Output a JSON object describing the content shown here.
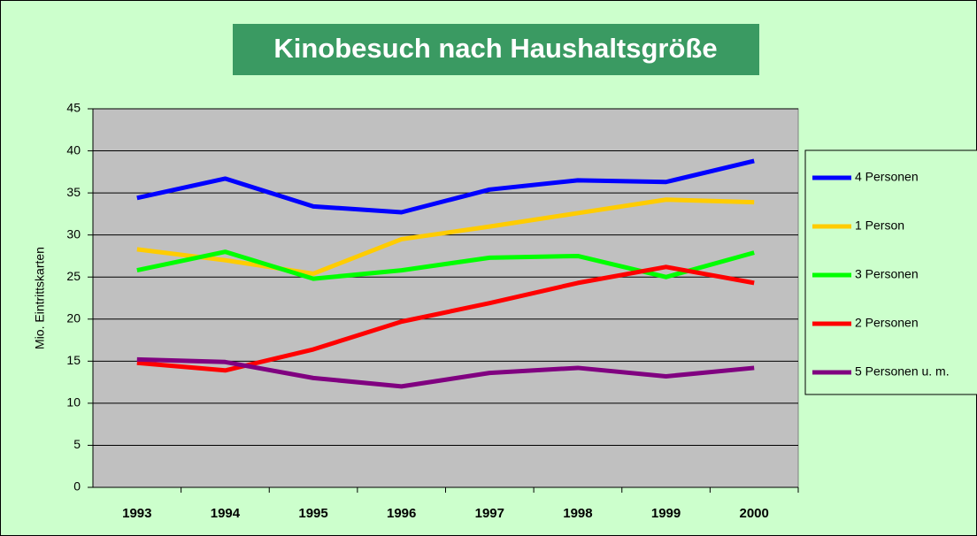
{
  "chart_data": {
    "type": "line",
    "title": "Kinobesuch nach Haushaltsgröße",
    "y_label": "Mio. Eintrittskarten",
    "categories": [
      "1993",
      "1994",
      "1995",
      "1996",
      "1997",
      "1998",
      "1999",
      "2000"
    ],
    "series": [
      {
        "name": "4 Personen",
        "color": "#0000ff",
        "values": [
          34.4,
          36.7,
          33.4,
          32.7,
          35.4,
          36.5,
          36.3,
          38.8
        ]
      },
      {
        "name": "1 Person",
        "color": "#ffcc00",
        "values": [
          28.3,
          27.0,
          25.4,
          29.5,
          31.0,
          32.6,
          34.2,
          33.9
        ]
      },
      {
        "name": "3 Personen",
        "color": "#00ff00",
        "values": [
          25.8,
          28.0,
          24.8,
          25.8,
          27.3,
          27.5,
          25.0,
          27.9
        ]
      },
      {
        "name": "2 Personen",
        "color": "#ff0000",
        "values": [
          14.8,
          13.9,
          16.4,
          19.7,
          21.9,
          24.3,
          26.2,
          24.3
        ]
      },
      {
        "name": "5 Personen u. m.",
        "color": "#800080",
        "values": [
          15.2,
          14.9,
          13.0,
          12.0,
          13.6,
          14.2,
          13.2,
          14.2
        ]
      }
    ],
    "ylim": [
      0,
      45
    ],
    "yticks": [
      0,
      5,
      10,
      15,
      20,
      25,
      30,
      35,
      40,
      45
    ],
    "grid": true,
    "legend": "right"
  }
}
